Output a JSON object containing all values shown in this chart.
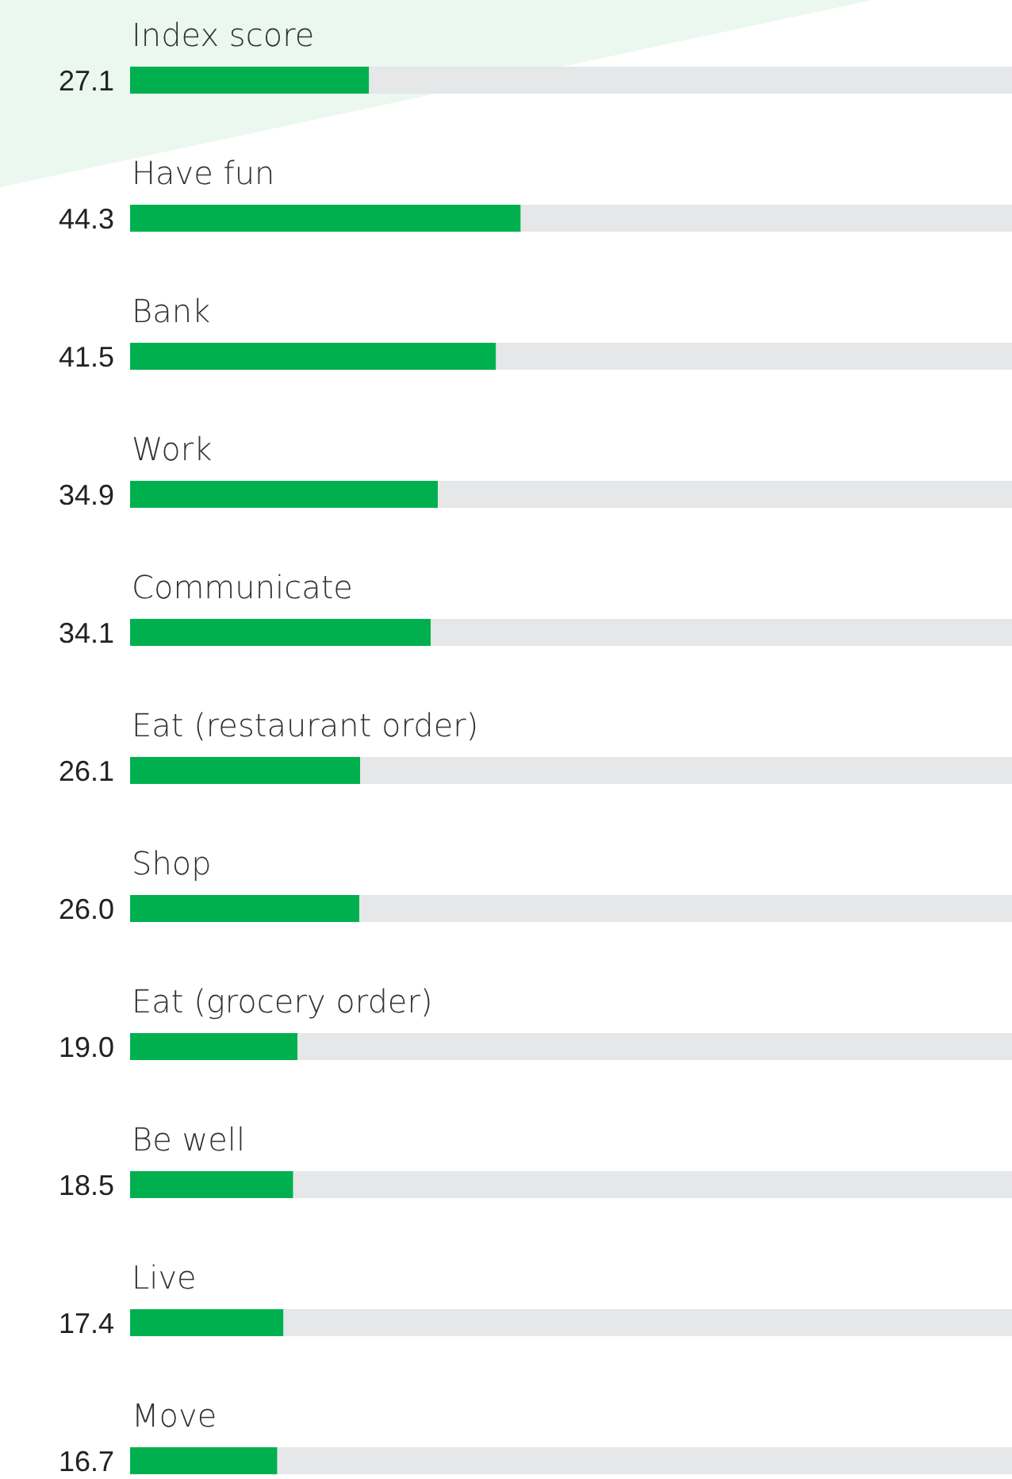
{
  "chart_data": {
    "type": "bar",
    "orientation": "horizontal",
    "stacked": true,
    "xlim": [
      0,
      100
    ],
    "categories": [
      "Index score",
      "Have fun",
      "Bank",
      "Work",
      "Communicate",
      "Eat (restaurant order)",
      "Shop",
      "Eat (grocery order)",
      "Be well",
      "Live",
      "Move"
    ],
    "series": [
      {
        "color": "#00b04f",
        "values": [
          27.1,
          44.3,
          41.5,
          34.9,
          34.1,
          26.1,
          26.0,
          19.0,
          18.5,
          17.4,
          16.7
        ],
        "value_labels": [
          "27.1",
          "44.3",
          "41.5",
          "34.9",
          "34.1",
          "26.1",
          "26.0",
          "19.0",
          "18.5",
          "17.4",
          "16.7"
        ]
      },
      {
        "color": "#e6e7e9",
        "values": [
          72.9,
          55.7,
          58.5,
          65.1,
          65.9,
          73.9,
          74.0,
          81.0,
          81.5,
          82.6,
          83.3
        ]
      }
    ]
  }
}
